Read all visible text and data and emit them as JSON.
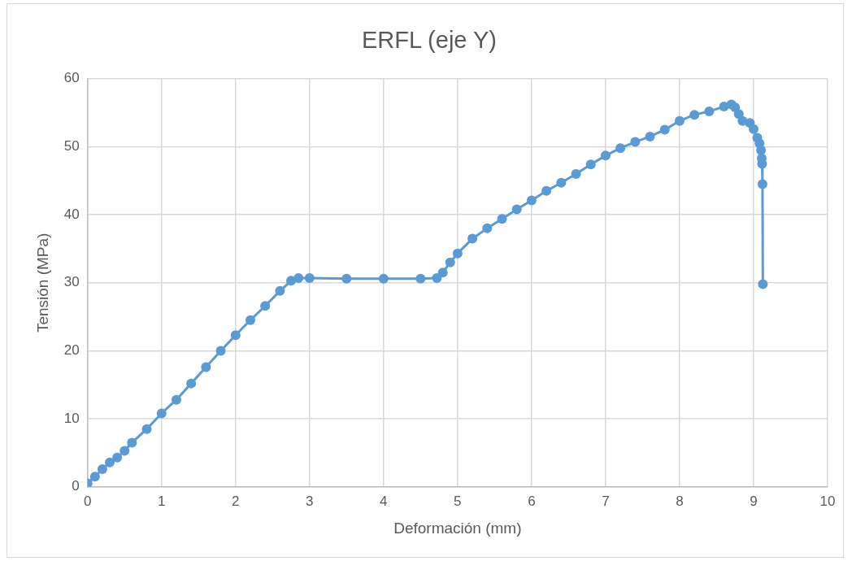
{
  "chart_data": {
    "type": "line",
    "title": "ERFL (eje Y)",
    "xlabel": "Deformación (mm)",
    "ylabel": "Tensión (MPa)",
    "x": [
      0,
      0.1,
      0.2,
      0.3,
      0.4,
      0.5,
      0.6,
      0.8,
      1.0,
      1.2,
      1.4,
      1.6,
      1.8,
      2.0,
      2.2,
      2.4,
      2.6,
      2.75,
      2.85,
      3.0,
      3.5,
      4.0,
      4.5,
      4.72,
      4.8,
      4.9,
      5.0,
      5.2,
      5.4,
      5.6,
      5.8,
      6.0,
      6.2,
      6.4,
      6.6,
      6.8,
      7.0,
      7.2,
      7.4,
      7.6,
      7.8,
      8.0,
      8.2,
      8.4,
      8.6,
      8.7,
      8.75,
      8.8,
      8.85,
      8.95,
      9.0,
      9.05,
      9.08,
      9.1,
      9.11,
      9.115,
      9.12,
      9.125
    ],
    "series": [
      {
        "color": "#5b9bd5",
        "values": [
          0.5,
          1.5,
          2.6,
          3.6,
          4.3,
          5.3,
          6.5,
          8.5,
          10.8,
          12.8,
          15.2,
          17.6,
          20,
          22.3,
          24.5,
          26.6,
          28.8,
          30.3,
          30.7,
          30.7,
          30.6,
          30.6,
          30.6,
          30.7,
          31.5,
          33,
          34.3,
          36.5,
          38,
          39.4,
          40.8,
          42.1,
          43.5,
          44.7,
          46,
          47.4,
          48.7,
          49.8,
          50.7,
          51.5,
          52.5,
          53.8,
          54.7,
          55.2,
          55.9,
          56.2,
          55.8,
          54.8,
          53.8,
          53.5,
          52.6,
          51.3,
          50.5,
          49.5,
          48.3,
          47.5,
          44.5,
          29.8
        ]
      }
    ],
    "xlim": [
      0,
      10
    ],
    "xticks": [
      0,
      1,
      2,
      3,
      4,
      5,
      6,
      7,
      8,
      9,
      10
    ],
    "ylim": [
      0,
      60
    ],
    "yticks": [
      0,
      10,
      20,
      30,
      40,
      50,
      60
    ],
    "grid": true,
    "legend": false,
    "marker": "circle",
    "line_style": "solid"
  }
}
